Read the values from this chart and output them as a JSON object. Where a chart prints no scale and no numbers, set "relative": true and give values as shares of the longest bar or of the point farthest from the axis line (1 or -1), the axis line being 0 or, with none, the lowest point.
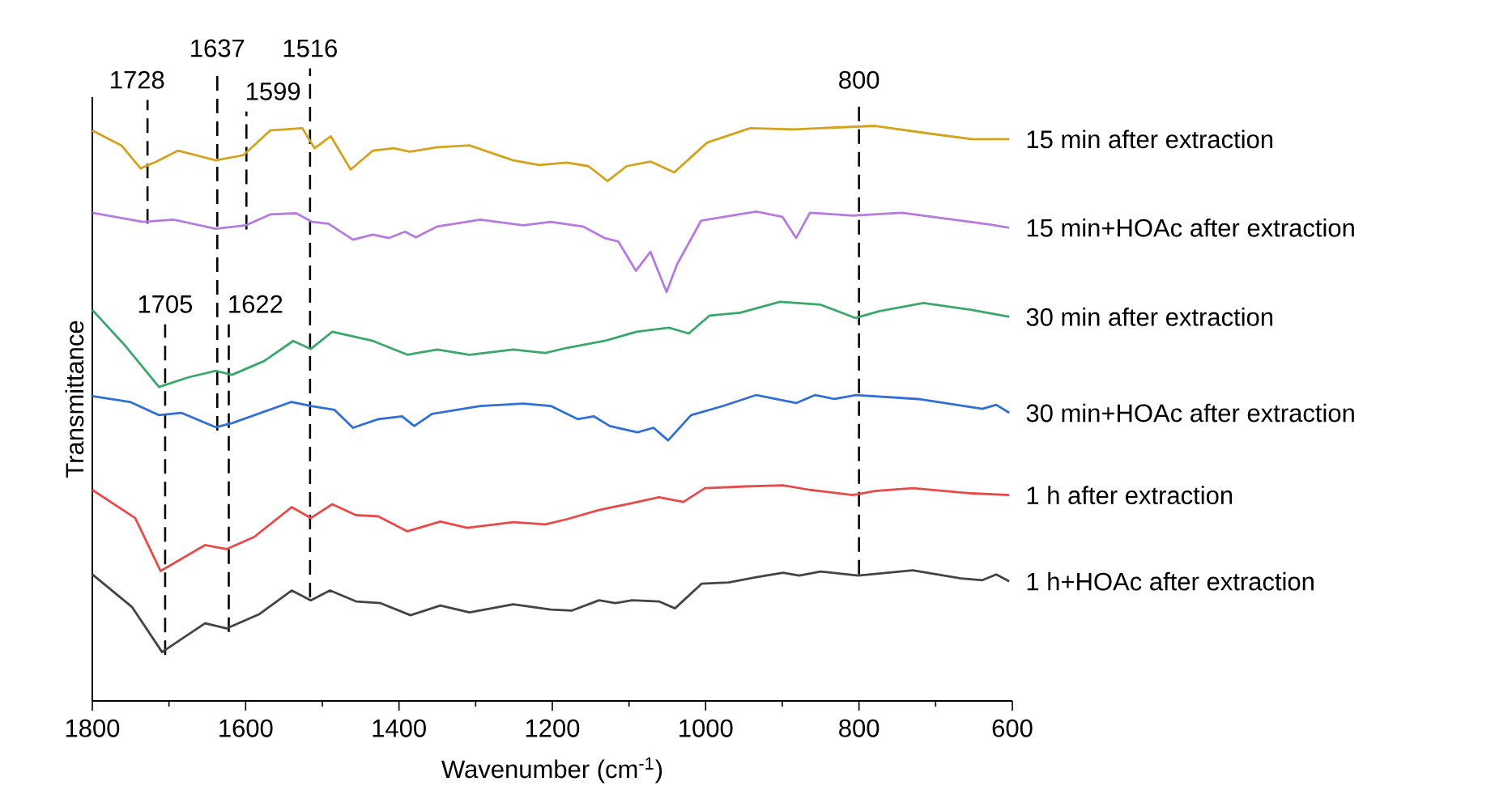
{
  "chart_data": {
    "type": "line",
    "relative": true,
    "xlabel": "Wavenumber (cm$^{-1}$)",
    "ylabel": "Transmittance",
    "xlim": [
      1800,
      600
    ],
    "xticks": [
      1800,
      1600,
      1400,
      1200,
      1000,
      800,
      600
    ],
    "legend": false,
    "series": [
      {
        "name": "15 min after extraction",
        "color": "#d4a21c",
        "x": [
          1800,
          1762,
          1737,
          1716,
          1688,
          1639,
          1603,
          1568,
          1526,
          1510,
          1489,
          1463,
          1434,
          1407,
          1386,
          1350,
          1308,
          1251,
          1217,
          1181,
          1153,
          1128,
          1103,
          1072,
          1041,
          998,
          942,
          885,
          779,
          710,
          653,
          604
        ],
        "values": [
          0.992,
          0.966,
          0.926,
          0.938,
          0.957,
          0.94,
          0.949,
          0.992,
          0.996,
          0.961,
          0.982,
          0.924,
          0.957,
          0.961,
          0.955,
          0.963,
          0.966,
          0.94,
          0.932,
          0.936,
          0.93,
          0.904,
          0.93,
          0.938,
          0.919,
          0.971,
          0.996,
          0.994,
          1.0,
          0.987,
          0.977,
          0.977
        ]
      },
      {
        "name": "15 min+HOAc after extraction",
        "color": "#b57be0",
        "x": [
          1800,
          1734,
          1694,
          1639,
          1600,
          1568,
          1534,
          1513,
          1492,
          1460,
          1434,
          1413,
          1392,
          1378,
          1350,
          1294,
          1238,
          1202,
          1160,
          1132,
          1114,
          1091,
          1072,
          1051,
          1037,
          1006,
          934,
          900,
          882,
          864,
          808,
          744,
          667,
          628,
          604
        ],
        "values": [
          0.849,
          0.833,
          0.837,
          0.821,
          0.827,
          0.846,
          0.848,
          0.833,
          0.83,
          0.802,
          0.811,
          0.805,
          0.816,
          0.806,
          0.825,
          0.837,
          0.827,
          0.833,
          0.825,
          0.805,
          0.799,
          0.748,
          0.781,
          0.711,
          0.76,
          0.835,
          0.851,
          0.842,
          0.805,
          0.849,
          0.844,
          0.849,
          0.835,
          0.828,
          0.823
        ]
      },
      {
        "name": "30 min after extraction",
        "color": "#3aa86b",
        "x": [
          1800,
          1758,
          1713,
          1674,
          1639,
          1618,
          1576,
          1538,
          1515,
          1487,
          1434,
          1389,
          1350,
          1308,
          1251,
          1209,
          1181,
          1132,
          1090,
          1048,
          1022,
          995,
          955,
          903,
          850,
          805,
          773,
          716,
          653,
          604
        ],
        "values": [
          0.68,
          0.619,
          0.546,
          0.563,
          0.574,
          0.567,
          0.591,
          0.626,
          0.612,
          0.642,
          0.626,
          0.602,
          0.611,
          0.602,
          0.611,
          0.605,
          0.614,
          0.626,
          0.642,
          0.649,
          0.639,
          0.67,
          0.675,
          0.694,
          0.689,
          0.666,
          0.678,
          0.692,
          0.68,
          0.668
        ]
      },
      {
        "name": "30 min+HOAc after extraction",
        "color": "#2f6fd6",
        "x": [
          1800,
          1751,
          1713,
          1684,
          1639,
          1618,
          1540,
          1515,
          1484,
          1460,
          1427,
          1396,
          1380,
          1357,
          1294,
          1238,
          1202,
          1167,
          1146,
          1125,
          1089,
          1068,
          1049,
          1019,
          977,
          934,
          882,
          857,
          832,
          804,
          723,
          639,
          621,
          604
        ],
        "values": [
          0.53,
          0.52,
          0.497,
          0.501,
          0.476,
          0.483,
          0.52,
          0.513,
          0.506,
          0.475,
          0.49,
          0.495,
          0.478,
          0.499,
          0.513,
          0.517,
          0.513,
          0.49,
          0.495,
          0.478,
          0.467,
          0.475,
          0.453,
          0.497,
          0.513,
          0.532,
          0.518,
          0.532,
          0.525,
          0.532,
          0.525,
          0.508,
          0.515,
          0.501
        ]
      },
      {
        "name": "1 h after extraction",
        "color": "#e84a4a",
        "x": [
          1800,
          1744,
          1711,
          1653,
          1625,
          1589,
          1540,
          1515,
          1487,
          1456,
          1427,
          1389,
          1346,
          1311,
          1251,
          1209,
          1181,
          1139,
          1096,
          1061,
          1029,
          1001,
          949,
          899,
          864,
          808,
          779,
          730,
          653,
          604
        ],
        "values": [
          0.367,
          0.318,
          0.226,
          0.271,
          0.264,
          0.285,
          0.337,
          0.318,
          0.342,
          0.323,
          0.321,
          0.295,
          0.312,
          0.301,
          0.311,
          0.307,
          0.316,
          0.332,
          0.344,
          0.354,
          0.346,
          0.37,
          0.373,
          0.375,
          0.367,
          0.358,
          0.365,
          0.37,
          0.361,
          0.358
        ]
      },
      {
        "name": "1 h+HOAc after extraction",
        "color": "#444444",
        "x": [
          1800,
          1748,
          1709,
          1653,
          1625,
          1582,
          1540,
          1515,
          1490,
          1456,
          1424,
          1385,
          1346,
          1308,
          1251,
          1202,
          1175,
          1139,
          1118,
          1096,
          1061,
          1040,
          1005,
          970,
          934,
          899,
          878,
          850,
          801,
          730,
          667,
          639,
          621,
          604
        ],
        "values": [
          0.22,
          0.163,
          0.085,
          0.135,
          0.126,
          0.151,
          0.192,
          0.175,
          0.192,
          0.173,
          0.17,
          0.149,
          0.166,
          0.154,
          0.168,
          0.159,
          0.157,
          0.175,
          0.17,
          0.175,
          0.173,
          0.161,
          0.204,
          0.206,
          0.215,
          0.223,
          0.218,
          0.225,
          0.218,
          0.227,
          0.213,
          0.21,
          0.22,
          0.208
        ]
      }
    ],
    "ref_lines": [
      {
        "axis": "x",
        "value": 1728,
        "label": "1728",
        "color": "#000000",
        "line_style": "dashed"
      },
      {
        "axis": "x",
        "value": 1637,
        "label": "1637",
        "color": "#000000",
        "line_style": "dashed"
      },
      {
        "axis": "x",
        "value": 1599,
        "label": "1599",
        "color": "#000000",
        "line_style": "dashed"
      },
      {
        "axis": "x",
        "value": 1516,
        "label": "1516",
        "color": "#000000",
        "line_style": "dashed"
      },
      {
        "axis": "x",
        "value": 800,
        "label": "800",
        "color": "#000000",
        "line_style": "dashed"
      },
      {
        "axis": "x",
        "value": 1705,
        "label": "1705",
        "color": "#000000",
        "line_style": "dashed"
      },
      {
        "axis": "x",
        "value": 1622,
        "label": "1622",
        "color": "#000000",
        "line_style": "dashed"
      }
    ]
  }
}
